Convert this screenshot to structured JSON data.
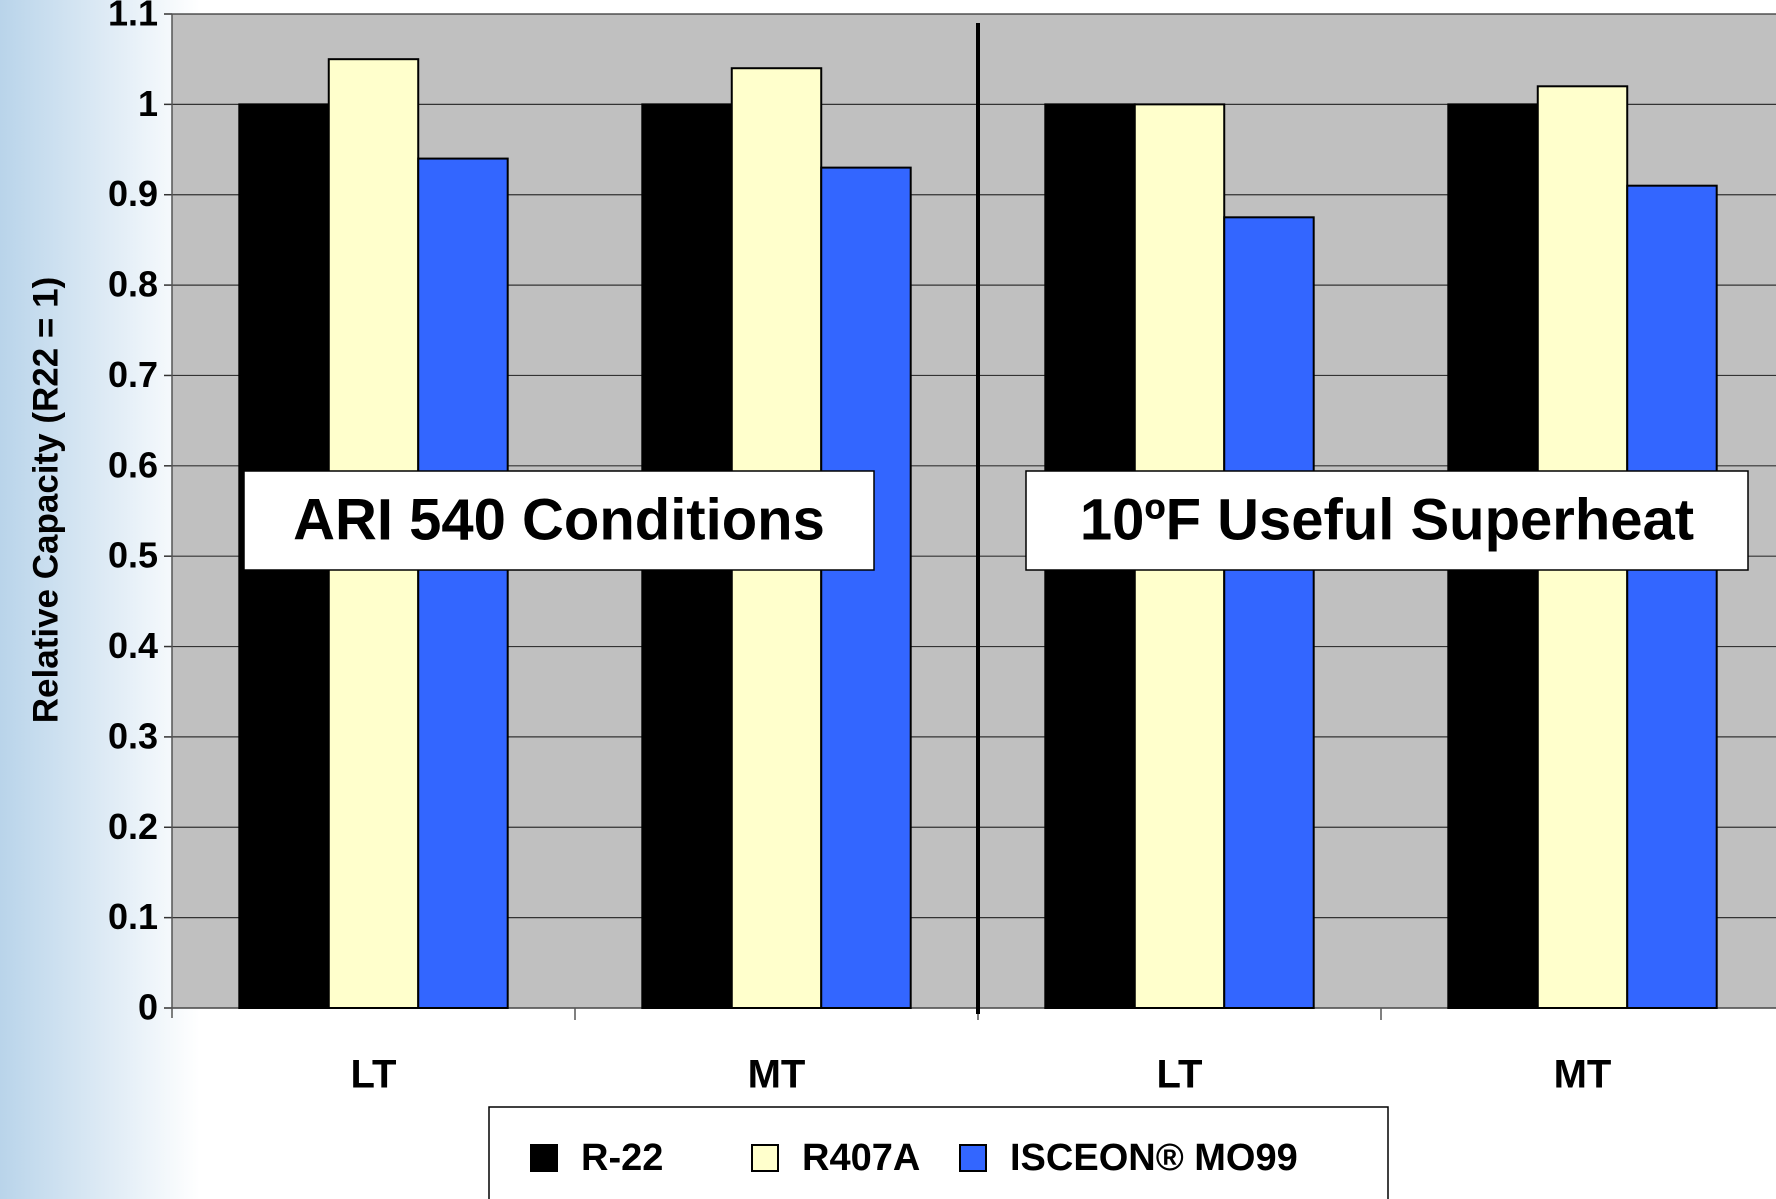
{
  "chart_data": {
    "type": "bar",
    "y_label": "Relative Capacity (R22 = 1)",
    "categories": [
      "LT",
      "MT",
      "LT",
      "MT"
    ],
    "series": [
      {
        "name": "R-22",
        "color": "#000000",
        "values": [
          1,
          1,
          1,
          1
        ]
      },
      {
        "name": "R407A",
        "color": "#ffffcc",
        "values": [
          1.05,
          1.04,
          1.0,
          1.02
        ]
      },
      {
        "name": "ISCEON® MO99",
        "color": "#3366ff",
        "values": [
          0.94,
          0.93,
          0.875,
          0.91
        ]
      }
    ],
    "annotations": [
      "ARI 540 Conditions",
      "10ºF Useful Superheat"
    ],
    "ylim": [
      0,
      1.1
    ],
    "yticks": [
      0,
      0.1,
      0.2,
      0.3,
      0.4,
      0.5,
      0.6,
      0.7,
      0.8,
      0.9,
      1,
      1.1
    ],
    "grid": true
  }
}
